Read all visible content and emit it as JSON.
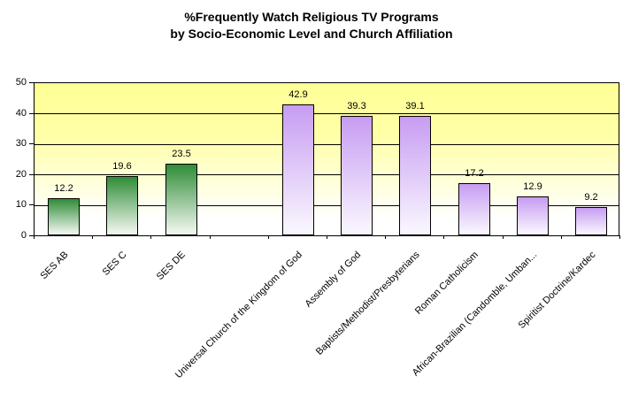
{
  "chart_data": {
    "type": "bar",
    "title_line1": "%Frequently Watch Religious TV Programs",
    "title_line2": "by Socio-Economic Level and Church Affiliation",
    "xlabel": "",
    "ylabel": "",
    "categories": [
      "SES AB",
      "SES C",
      "SES DE",
      "",
      "Universal Church of the Kingdom of God",
      "Assembly of God",
      "Baptists/Methodist/Presbyterians",
      "Roman Catholicism",
      "African-Brazilian (Candomble, Umban...",
      "Spiritist Doctrine/Kardec"
    ],
    "values": [
      12.2,
      19.6,
      23.5,
      null,
      42.9,
      39.3,
      39.1,
      17.2,
      12.9,
      9.2
    ],
    "data_labels": [
      "12.2",
      "19.6",
      "23.5",
      "",
      "42.9",
      "39.3",
      "39.1",
      "17.2",
      "12.9",
      "9.2"
    ],
    "bar_groups": [
      "ses",
      "ses",
      "ses",
      null,
      "church",
      "church",
      "church",
      "church",
      "church",
      "church"
    ],
    "ylim": [
      0,
      50
    ],
    "yticks": [
      0,
      10,
      20,
      30,
      40,
      50
    ],
    "grid": true,
    "legend_position": "none",
    "colors": {
      "plot_bg_top": "#ffff96",
      "plot_bg_mid": "#ffffa8",
      "plot_bg_bottom": "#ffffff",
      "ses_bar_top": "#2f8c37",
      "ses_bar_bottom": "#ecf4ea",
      "church_bar_top": "#c79cf2",
      "church_bar_bottom": "#f8f4fe",
      "bar_border": "#000000",
      "gridline": "#000000",
      "text": "#000000"
    }
  }
}
